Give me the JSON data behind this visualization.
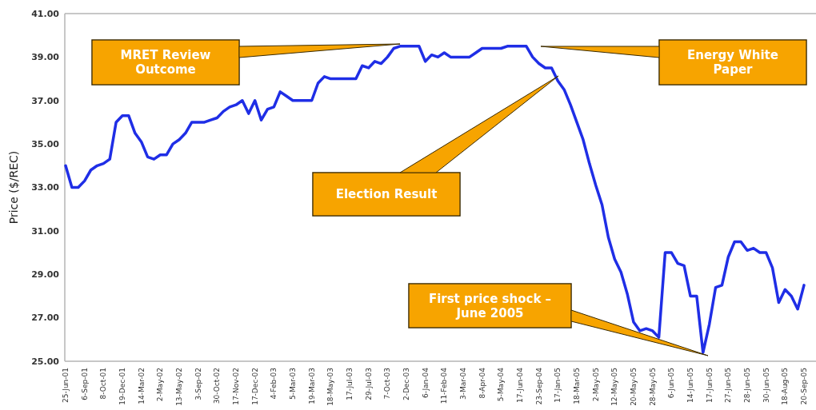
{
  "chart_data": {
    "type": "line",
    "ylabel": "Price ($/REC)",
    "categories": [
      "25-Jun-01",
      null,
      null,
      "6-Sep-01",
      null,
      null,
      "8-Oct-01",
      null,
      null,
      "19-Dec-01",
      null,
      null,
      "14-Mar-02",
      null,
      null,
      "2-May-02",
      null,
      null,
      "13-May-02",
      null,
      null,
      "3-Sep-02",
      null,
      null,
      "30-Oct-02",
      null,
      null,
      "17-Nov-02",
      null,
      null,
      "17-Dec-02",
      null,
      null,
      "4-Feb-03",
      null,
      null,
      "5-Mar-03",
      null,
      null,
      "19-Mar-03",
      null,
      null,
      "18-May-03",
      null,
      null,
      "17-Jul-03",
      null,
      null,
      "29-Jul-03",
      null,
      null,
      "7-Oct-03",
      null,
      null,
      "2-Dec-03",
      null,
      null,
      "6-Jan-04",
      null,
      null,
      "11-Feb-04",
      null,
      null,
      "3-Mar-04",
      null,
      null,
      "8-Apr-04",
      null,
      null,
      "5-May-04",
      null,
      null,
      "17-Jun-04",
      null,
      null,
      "23-Sep-04",
      null,
      null,
      "17-Jan-05",
      null,
      null,
      "18-Mar-05",
      null,
      null,
      "2-May-05",
      null,
      null,
      "12-May-05",
      null,
      null,
      "20-May-05",
      null,
      null,
      "28-May-05",
      null,
      null,
      "6-Jun-05",
      null,
      null,
      "14-Jun-05",
      null,
      null,
      "17-Jun-05",
      null,
      null,
      "27-Jun-05",
      null,
      null,
      "28-Jun-05",
      null,
      null,
      "30-Jun-05",
      null,
      null,
      "18-Aug-05",
      null,
      null,
      "20-Sep-05"
    ],
    "series": [
      {
        "color": "#1f2ee6",
        "values": [
          34.0,
          33.0,
          33.0,
          33.3,
          33.8,
          34.0,
          34.1,
          34.3,
          36.0,
          36.3,
          36.3,
          35.5,
          35.1,
          34.4,
          34.3,
          34.5,
          34.5,
          35.0,
          35.2,
          35.5,
          36.0,
          36.0,
          36.0,
          36.1,
          36.2,
          36.5,
          36.7,
          36.8,
          37.0,
          36.4,
          37.0,
          36.1,
          36.6,
          36.7,
          37.4,
          37.2,
          37.0,
          37.0,
          37.0,
          37.0,
          37.8,
          38.1,
          38.0,
          38.0,
          38.0,
          38.0,
          38.0,
          38.6,
          38.5,
          38.8,
          38.7,
          39.0,
          39.4,
          39.5,
          39.5,
          39.5,
          39.5,
          38.8,
          39.1,
          39.0,
          39.2,
          39.0,
          39.0,
          39.0,
          39.0,
          39.2,
          39.4,
          39.4,
          39.4,
          39.4,
          39.5,
          39.5,
          39.5,
          39.5,
          39.0,
          38.7,
          38.5,
          38.5,
          37.9,
          37.5,
          36.8,
          36.0,
          35.2,
          34.1,
          33.1,
          32.2,
          30.7,
          29.7,
          29.1,
          28.1,
          26.8,
          26.4,
          26.5,
          26.4,
          26.1,
          30.0,
          30.0,
          29.5,
          29.4,
          28.0,
          28.0,
          25.4,
          26.7,
          28.4,
          28.5,
          29.8,
          30.5,
          30.5,
          30.1,
          30.2,
          30.0,
          30.0,
          29.3,
          27.7,
          28.3,
          28.0,
          27.4,
          28.5
        ]
      }
    ],
    "ylim": [
      25,
      41
    ],
    "yticks": [
      {
        "value": 25,
        "label": "25.00"
      },
      {
        "value": 27,
        "label": "27.00"
      },
      {
        "value": 29,
        "label": "29.00"
      },
      {
        "value": 31,
        "label": "31.00"
      },
      {
        "value": 33,
        "label": "33.00"
      },
      {
        "value": 35,
        "label": "35.00"
      },
      {
        "value": 37,
        "label": "37.00"
      },
      {
        "value": 39,
        "label": "39.00"
      },
      {
        "value": 41,
        "label": "41.00"
      }
    ],
    "grid": false,
    "marker": "none",
    "line_style": "solid",
    "annotations": [
      "MRET Review\nOutcome",
      "Energy White\nPaper",
      "Election Result",
      "First price shock –\nJune 2005"
    ]
  }
}
